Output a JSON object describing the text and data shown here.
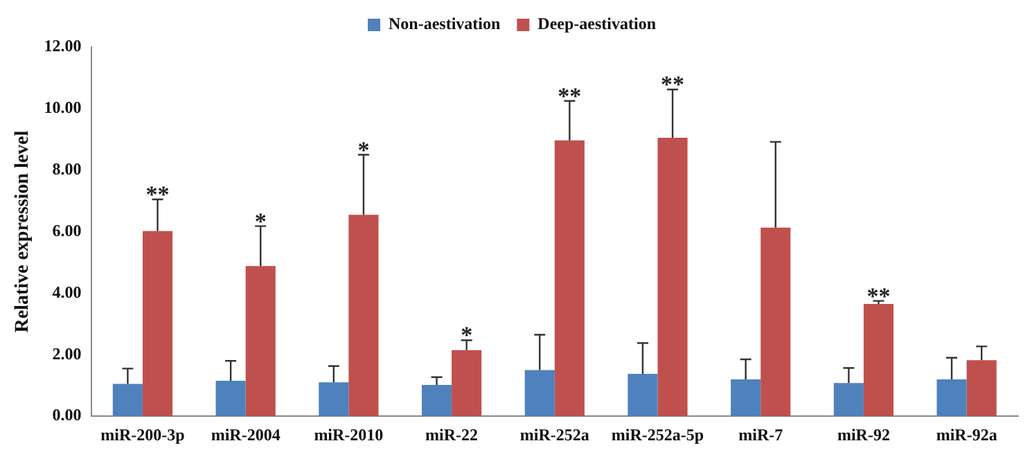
{
  "chart_data": {
    "type": "bar",
    "ylabel": "Relative expression level",
    "categories": [
      "miR-200-3p",
      "miR-2004",
      "miR-2010",
      "miR-22",
      "miR-252a",
      "miR-252a-5p",
      "miR-7",
      "miR-92",
      "miR-92a"
    ],
    "series": [
      {
        "name": "Non-aestivation",
        "color": "#4f81bd",
        "values": [
          1.05,
          1.15,
          1.1,
          1.02,
          1.5,
          1.38,
          1.2,
          1.08,
          1.2
        ],
        "errors": [
          [
            1.05,
            1.55
          ],
          [
            1.15,
            1.8
          ],
          [
            1.1,
            1.63
          ],
          [
            1.02,
            1.27
          ],
          [
            1.5,
            2.65
          ],
          [
            1.38,
            2.38
          ],
          [
            1.2,
            1.85
          ],
          [
            1.08,
            1.57
          ],
          [
            1.2,
            1.9
          ]
        ]
      },
      {
        "name": "Deep-aestivation",
        "color": "#c0504d",
        "values": [
          6.02,
          4.88,
          6.55,
          2.15,
          8.97,
          9.05,
          6.13,
          3.65,
          1.82
        ],
        "errors": [
          [
            6.02,
            7.05
          ],
          [
            4.88,
            6.18
          ],
          [
            6.55,
            8.5
          ],
          [
            2.15,
            2.47
          ],
          [
            8.97,
            10.25
          ],
          [
            9.05,
            10.62
          ],
          [
            6.13,
            8.92
          ],
          [
            3.65,
            3.75
          ],
          [
            1.82,
            2.27
          ]
        ]
      }
    ],
    "ylim": [
      0,
      12
    ],
    "yticks": [
      {
        "value": 0,
        "label": "0.00"
      },
      {
        "value": 2,
        "label": "2.00"
      },
      {
        "value": 4,
        "label": "4.00"
      },
      {
        "value": 6,
        "label": "6.00"
      },
      {
        "value": 8,
        "label": "8.00"
      },
      {
        "value": 10,
        "label": "10.00"
      },
      {
        "value": 12,
        "label": "12.00"
      }
    ],
    "annotations": [
      {
        "text": "**",
        "x": "miR-200-3p",
        "y": 6.02
      },
      {
        "text": "*",
        "x": "miR-2004",
        "y": 4.88
      },
      {
        "text": "*",
        "x": "miR-2010",
        "y": 6.55
      },
      {
        "text": "*",
        "x": "miR-22",
        "y": 2.15
      },
      {
        "text": "**",
        "x": "miR-252a",
        "y": 8.97
      },
      {
        "text": "**",
        "x": "miR-252a-5p",
        "y": 9.05
      },
      {
        "text": "**",
        "x": "miR-92",
        "y": 3.65
      }
    ],
    "grid": false,
    "legend": "top"
  }
}
